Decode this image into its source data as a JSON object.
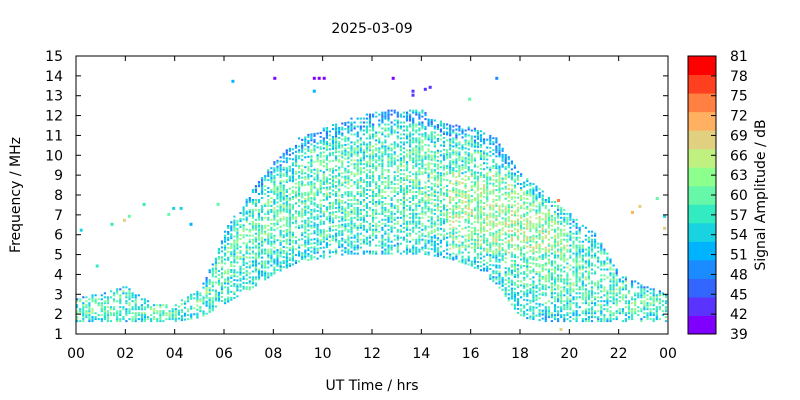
{
  "chart_data": {
    "type": "heatmap",
    "title": "2025-03-09",
    "xlabel": "UT Time / hrs",
    "ylabel": "Frequency / MHz",
    "colorbar_label": "Signal Amplitude / dB",
    "xlim": [
      0,
      24
    ],
    "ylim": [
      1,
      15
    ],
    "x_ticks": [
      "00",
      "02",
      "04",
      "06",
      "08",
      "10",
      "12",
      "14",
      "16",
      "18",
      "20",
      "22",
      "00"
    ],
    "y_ticks": [
      "1",
      "2",
      "3",
      "4",
      "5",
      "6",
      "7",
      "8",
      "9",
      "10",
      "11",
      "12",
      "13",
      "14",
      "15"
    ],
    "colorbar_ticks": [
      "39",
      "42",
      "45",
      "48",
      "51",
      "54",
      "57",
      "60",
      "63",
      "66",
      "69",
      "72",
      "75",
      "78",
      "81"
    ],
    "colorbar_range": [
      39,
      81
    ],
    "colorbar_colors": [
      "#8000ff",
      "#5a33ff",
      "#3366ff",
      "#1a8cff",
      "#00b3ff",
      "#19d3e0",
      "#33ebc0",
      "#66f7a8",
      "#8cff8c",
      "#c0f080",
      "#e0d080",
      "#ffb060",
      "#ff8040",
      "#ff4020",
      "#ff0000"
    ],
    "grid": false,
    "upper_envelope": [
      [
        0,
        2.8
      ],
      [
        1,
        3.0
      ],
      [
        2,
        3.4
      ],
      [
        3,
        2.5
      ],
      [
        4,
        2.5
      ],
      [
        5,
        3.2
      ],
      [
        5.5,
        4.5
      ],
      [
        6,
        6.2
      ],
      [
        7,
        8.0
      ],
      [
        8,
        9.6
      ],
      [
        9,
        10.8
      ],
      [
        10,
        11.3
      ],
      [
        11,
        11.8
      ],
      [
        12,
        12.1
      ],
      [
        13,
        12.3
      ],
      [
        14,
        12.2
      ],
      [
        15,
        11.5
      ],
      [
        16,
        11.4
      ],
      [
        17,
        10.8
      ],
      [
        18,
        9.0
      ],
      [
        19,
        8.0
      ],
      [
        20,
        7.0
      ],
      [
        21,
        6.0
      ],
      [
        22,
        4.0
      ],
      [
        23,
        3.4
      ],
      [
        24,
        3.0
      ]
    ],
    "lower_envelope": [
      [
        0,
        1.6
      ],
      [
        2,
        1.6
      ],
      [
        4,
        1.6
      ],
      [
        5,
        1.8
      ],
      [
        6,
        2.5
      ],
      [
        7,
        3.2
      ],
      [
        8,
        4.0
      ],
      [
        9,
        4.6
      ],
      [
        10,
        4.8
      ],
      [
        11,
        5.0
      ],
      [
        12,
        5.0
      ],
      [
        13,
        5.0
      ],
      [
        14,
        5.0
      ],
      [
        15,
        4.8
      ],
      [
        16,
        4.4
      ],
      [
        17,
        3.5
      ],
      [
        18,
        1.8
      ],
      [
        19,
        1.6
      ],
      [
        20,
        1.6
      ],
      [
        22,
        1.6
      ],
      [
        24,
        1.6
      ]
    ],
    "features": [
      {
        "x": 0.15,
        "y": 6.2,
        "value": 55
      },
      {
        "x": 0.8,
        "y": 4.4,
        "value": 58
      },
      {
        "x": 1.4,
        "y": 6.5,
        "value": 58
      },
      {
        "x": 1.9,
        "y": 6.7,
        "value": 69
      },
      {
        "x": 2.1,
        "y": 6.9,
        "value": 60
      },
      {
        "x": 2.7,
        "y": 7.5,
        "value": 56
      },
      {
        "x": 3.7,
        "y": 7.0,
        "value": 60
      },
      {
        "x": 3.9,
        "y": 7.3,
        "value": 54
      },
      {
        "x": 4.2,
        "y": 7.3,
        "value": 54
      },
      {
        "x": 4.6,
        "y": 6.5,
        "value": 52
      },
      {
        "x": 5.7,
        "y": 7.5,
        "value": 60
      },
      {
        "x": 6.3,
        "y": 13.7,
        "value": 51
      },
      {
        "x": 8.0,
        "y": 13.85,
        "value": 40
      },
      {
        "x": 9.6,
        "y": 13.85,
        "value": 40
      },
      {
        "x": 9.8,
        "y": 13.85,
        "value": 40
      },
      {
        "x": 10.0,
        "y": 13.85,
        "value": 40
      },
      {
        "x": 9.6,
        "y": 13.2,
        "value": 52
      },
      {
        "x": 12.8,
        "y": 13.85,
        "value": 40
      },
      {
        "x": 13.6,
        "y": 13.2,
        "value": 42
      },
      {
        "x": 13.6,
        "y": 13.0,
        "value": 42
      },
      {
        "x": 14.1,
        "y": 13.3,
        "value": 42
      },
      {
        "x": 14.3,
        "y": 13.4,
        "value": 42
      },
      {
        "x": 15.9,
        "y": 12.8,
        "value": 60
      },
      {
        "x": 17.0,
        "y": 13.85,
        "value": 50
      },
      {
        "x": 19.5,
        "y": 7.7,
        "value": 74
      },
      {
        "x": 19.6,
        "y": 1.2,
        "value": 69
      },
      {
        "x": 22.5,
        "y": 7.1,
        "value": 72
      },
      {
        "x": 22.8,
        "y": 7.4,
        "value": 69
      },
      {
        "x": 23.5,
        "y": 7.8,
        "value": 60
      },
      {
        "x": 23.8,
        "y": 6.9,
        "value": 55
      },
      {
        "x": 23.8,
        "y": 6.3,
        "value": 69
      }
    ]
  }
}
